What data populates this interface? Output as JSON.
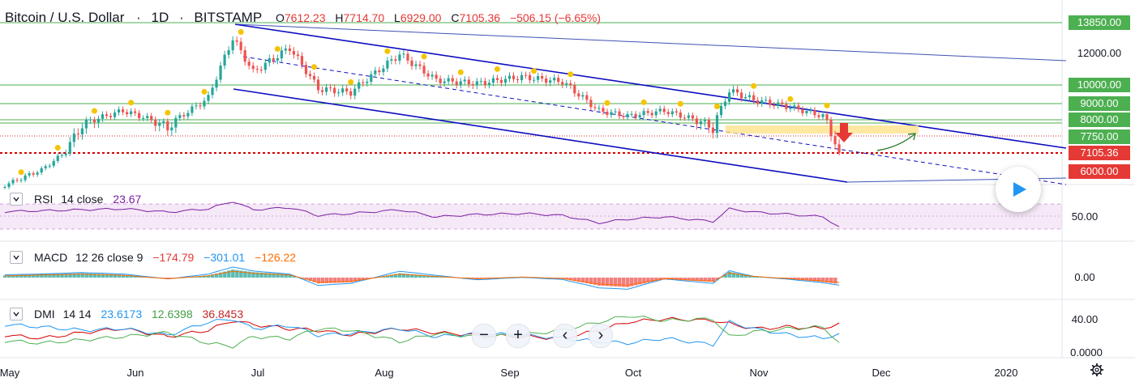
{
  "header": {
    "symbol": "Bitcoin / U.S. Dollar",
    "interval": "1D",
    "exchange": "BITSTAMP",
    "o_label": "O",
    "o": "7612.23",
    "h_label": "H",
    "h": "7714.70",
    "l_label": "L",
    "l": "6929.00",
    "c_label": "C",
    "c": "7105.36",
    "change": "−506.15 (−6.65%)"
  },
  "chart_data": {
    "type": "line",
    "price_axis_ticks": [
      "13850.00",
      "12000.00",
      "10000.00",
      "9000.00",
      "8000.00",
      "7750.00",
      "7105.36",
      "6000.00"
    ],
    "price_axis_tick_values": [
      13850,
      12000,
      10000,
      9000,
      8000,
      7750,
      7105.36,
      6000
    ],
    "highlighted_ticks": [
      "13850.00",
      "10000.00",
      "9000.00",
      "8000.00",
      "7750.00"
    ],
    "current_price_tag": "7105.36",
    "support_tag": "6000.00",
    "time_axis": [
      "May",
      "Jun",
      "Jul",
      "Aug",
      "Sep",
      "Oct",
      "Nov",
      "Dec",
      "2020"
    ],
    "price_series": {
      "name": "",
      "x": [
        "2019-05-01",
        "2019-05-10",
        "2019-05-20",
        "2019-05-30",
        "2019-06-10",
        "2019-06-20",
        "2019-06-26",
        "2019-07-01",
        "2019-07-10",
        "2019-07-17",
        "2019-07-25",
        "2019-08-06",
        "2019-08-15",
        "2019-08-25",
        "2019-09-05",
        "2019-09-15",
        "2019-09-24",
        "2019-10-01",
        "2019-10-10",
        "2019-10-22",
        "2019-10-26",
        "2019-11-01",
        "2019-11-10",
        "2019-11-18",
        "2019-11-22"
      ],
      "values": [
        5300,
        6100,
        7900,
        8600,
        7800,
        9300,
        12900,
        10800,
        12300,
        9800,
        9600,
        11900,
        10300,
        10100,
        10500,
        10200,
        8600,
        8300,
        8600,
        7800,
        9700,
        9200,
        8800,
        8300,
        7105
      ]
    },
    "horizontal_levels": [
      13850,
      10000,
      9000,
      8000,
      7750,
      7105.36
    ],
    "rsi": {
      "title": "RSI",
      "params": "14 close",
      "value": "23.67",
      "tick": "50.00",
      "values": [
        56,
        58,
        60,
        62,
        55,
        62,
        78,
        60,
        65,
        48,
        52,
        60,
        45,
        50,
        52,
        48,
        32,
        40,
        45,
        35,
        62,
        55,
        50,
        45,
        24
      ]
    },
    "macd": {
      "title": "MACD",
      "params": "12 26 close 9",
      "hist": "−174.79",
      "macd": "−301.01",
      "signal": "−126.22",
      "tick": "0.00",
      "hist_values": [
        60,
        90,
        120,
        80,
        -40,
        60,
        220,
        150,
        90,
        -160,
        -130,
        120,
        40,
        -40,
        20,
        -30,
        -220,
        -260,
        -40,
        -120,
        160,
        40,
        -40,
        -120,
        -175
      ]
    },
    "dmi": {
      "title": "DMI",
      "params": "14 14",
      "plus": "23.6173",
      "minus": "12.6398",
      "adx": "36.8453",
      "ticks": [
        "40.00",
        "0.0000"
      ],
      "adx_values": [
        22,
        18,
        25,
        30,
        20,
        28,
        40,
        35,
        30,
        28,
        22,
        30,
        25,
        22,
        20,
        18,
        28,
        38,
        42,
        40,
        36,
        30,
        32,
        30,
        37
      ],
      "plus_values": [
        35,
        32,
        28,
        30,
        22,
        38,
        42,
        30,
        34,
        22,
        24,
        30,
        20,
        24,
        22,
        18,
        14,
        12,
        18,
        10,
        38,
        30,
        22,
        18,
        24
      ],
      "minus_values": [
        15,
        12,
        16,
        20,
        25,
        12,
        8,
        20,
        18,
        30,
        28,
        14,
        24,
        20,
        22,
        28,
        38,
        46,
        40,
        42,
        20,
        26,
        30,
        32,
        13
      ]
    }
  },
  "colors": {
    "up": "#26a69a",
    "down": "#ef5350",
    "channel": "#1e1ec8",
    "level": "#4caf50",
    "rsi": "#7b1fa2",
    "macd": "#2196f3",
    "signal": "#ff6d00",
    "dmi_plus": "#2196f3",
    "dmi_minus": "#4caf50",
    "adx": "#d50000",
    "marker": "#f5c400"
  },
  "controls": {
    "zoom_out": "−",
    "zoom_in": "+",
    "scroll_left": "‹",
    "scroll_right": "›"
  },
  "icons": {
    "play": "play-icon",
    "settings": "gear-icon",
    "collapse": "chevron-down-icon"
  }
}
